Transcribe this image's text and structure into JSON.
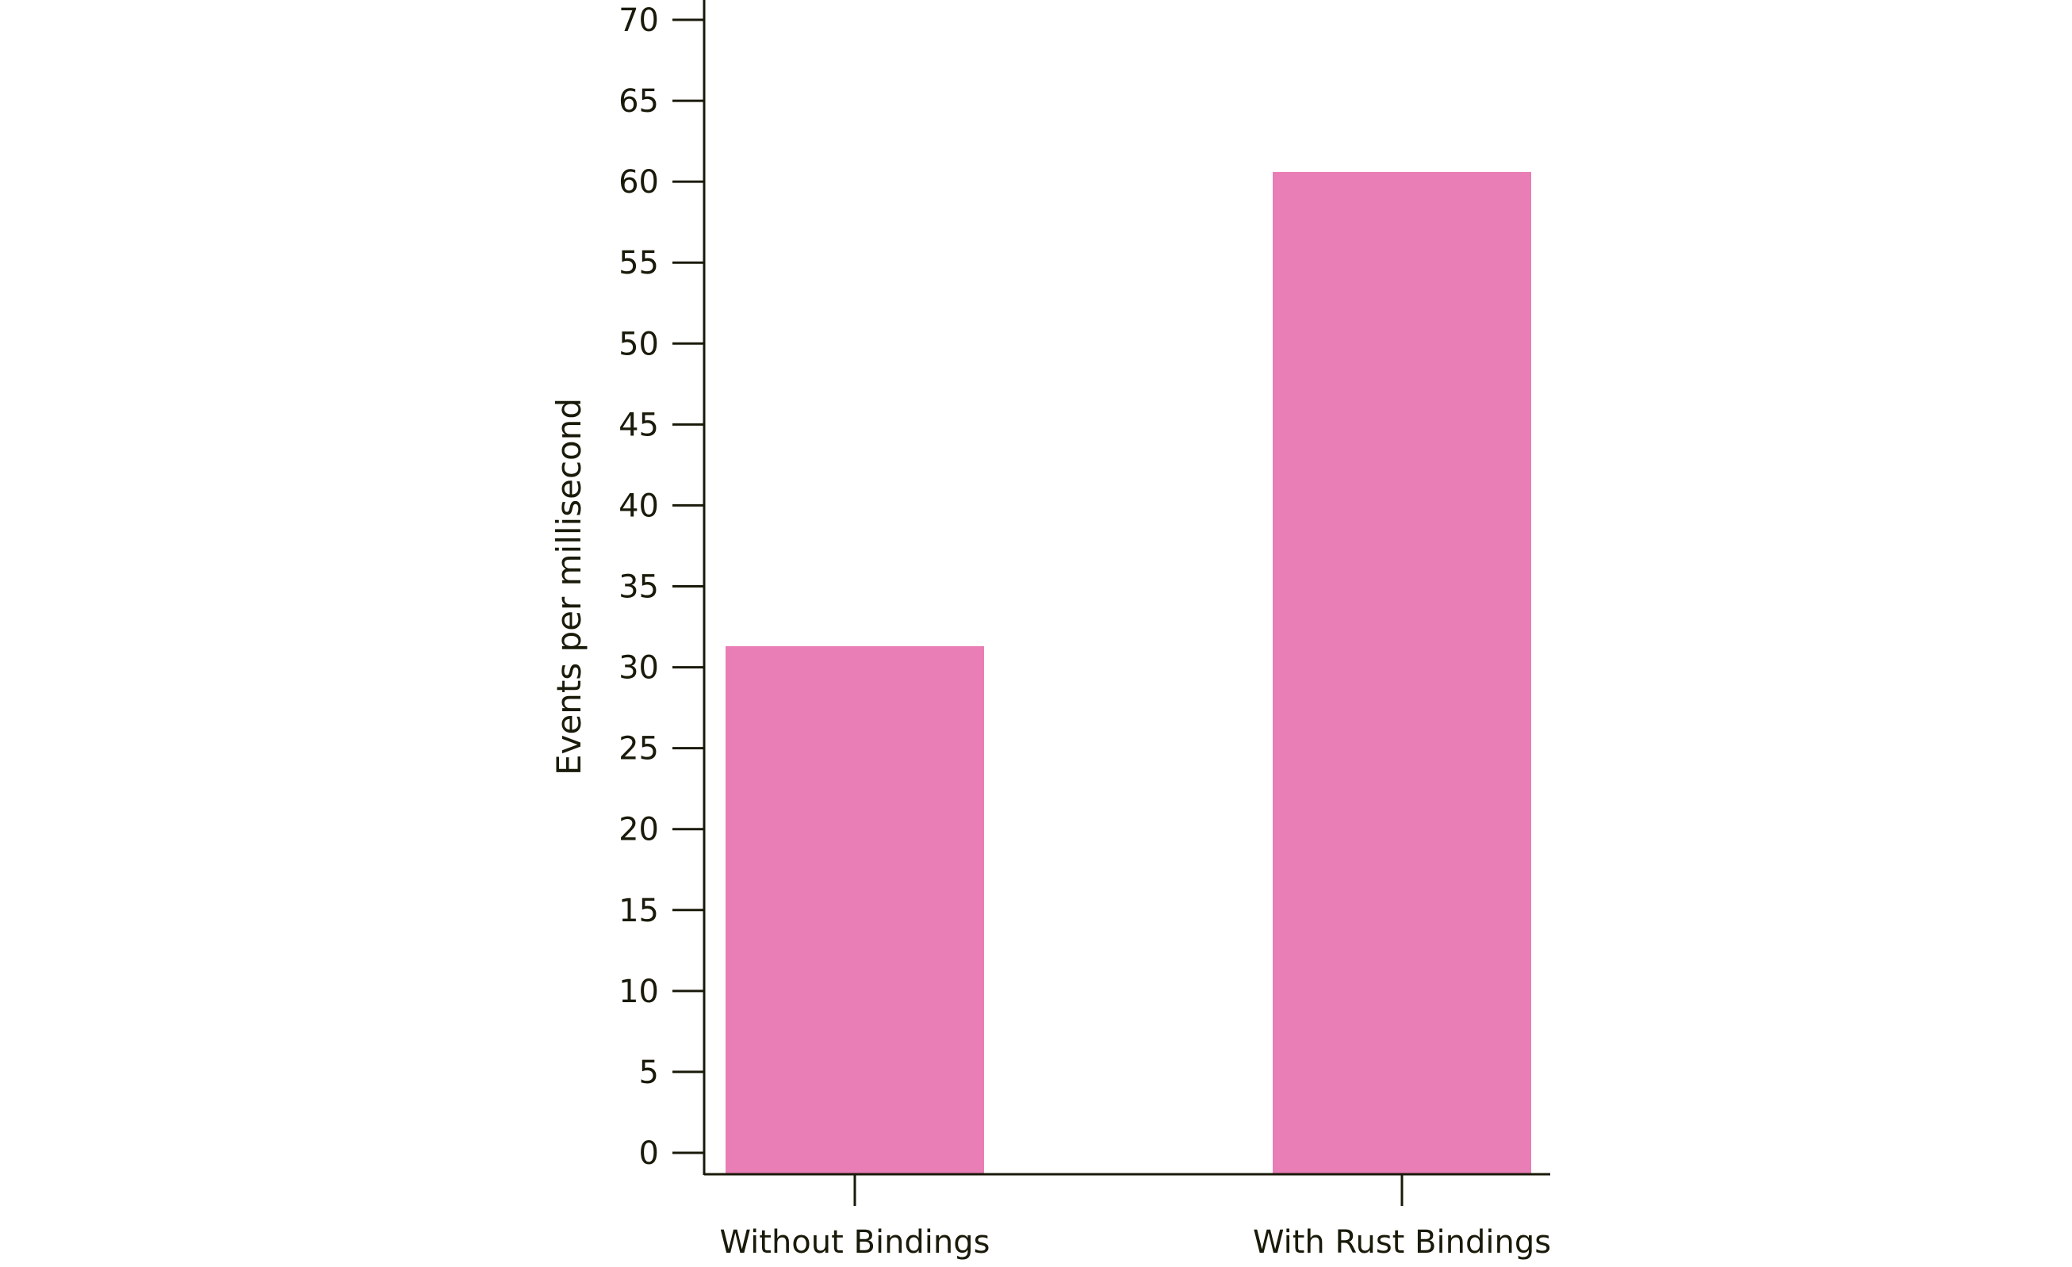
{
  "chart_data": {
    "type": "bar",
    "title": "",
    "xlabel": "",
    "ylabel": "Events per millisecond",
    "categories": [
      "Without Bindings",
      "With Rust Bindings"
    ],
    "values": [
      31.3,
      60.6
    ],
    "ylim": [
      0,
      70
    ],
    "yticks": [
      "0",
      "5",
      "10",
      "15",
      "20",
      "25",
      "30",
      "35",
      "40",
      "45",
      "50",
      "55",
      "60",
      "65",
      "70"
    ],
    "grid": false,
    "bar_color": "#e97db5",
    "axis_color": "#1a1a0a"
  }
}
